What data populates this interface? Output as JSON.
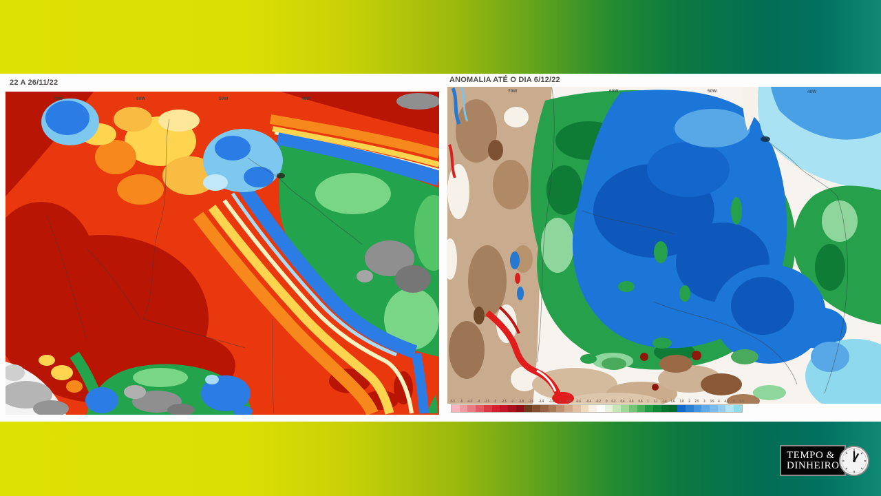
{
  "background": {
    "gradient_colors": [
      "#dee104",
      "#9ab80d",
      "#218a32",
      "#046e52",
      "#0f8a74"
    ],
    "panel_color": "#fdfdfd"
  },
  "left_map": {
    "title": "22 A 26/11/22",
    "lon_labels": [
      "70W",
      "60W",
      "50W",
      "40W"
    ],
    "palette": {
      "dark_red": "#b81505",
      "red": "#e9380e",
      "orange": "#f6881c",
      "yellow": "#ffd44e",
      "blue": "#2b7ce4",
      "cyan": "#a8dcf4",
      "green": "#22a34c",
      "light_green": "#79d687",
      "gray": "#8f8f8f",
      "white": "#f3f3f3"
    }
  },
  "right_map": {
    "title": "ANOMALIA ATÉ O DIA 6/12/22",
    "lon_labels": [
      "70W",
      "60W",
      "50W",
      "40W"
    ],
    "palette": {
      "tan": "#c9ab8e",
      "brown": "#8a5a38",
      "white": "#f7f4ef",
      "green": "#27a04c",
      "dark_green": "#0e7c34",
      "light_green": "#8fd69c",
      "blue": "#1b76d8",
      "dark_blue": "#0e58bc",
      "ocean_cyan": "#a9e2f2",
      "red": "#e01c1c",
      "dark_red": "#8e180e"
    },
    "colorbar": {
      "labels": [
        "-5.5",
        "-5",
        "-4.5",
        "-4",
        "-3.5",
        "-3",
        "-2.5",
        "-2",
        "-1.8",
        "-1.6",
        "-1.4",
        "-1.2",
        "-1",
        "-0.8",
        "-0.6",
        "-0.4",
        "-0.2",
        "0",
        "0.2",
        "0.4",
        "0.6",
        "0.8",
        "1",
        "1.2",
        "1.4",
        "1.6",
        "1.8",
        "2",
        "2.5",
        "3",
        "3.5",
        "4",
        "4.5",
        "5",
        "5.5"
      ],
      "colors": [
        "#f6b6bd",
        "#f09aa2",
        "#ea7a83",
        "#e45a64",
        "#de3a46",
        "#d62030",
        "#c41526",
        "#ac101c",
        "#920c14",
        "#6e3b1e",
        "#82502e",
        "#966442",
        "#aa7a56",
        "#be926e",
        "#d0aa88",
        "#e0c2a2",
        "#eedabc",
        "#f8f0e4",
        "#ffffff",
        "#e6f4de",
        "#c6e6b8",
        "#a0d696",
        "#74c476",
        "#48b058",
        "#249c44",
        "#108838",
        "#087430",
        "#066c2c",
        "#1468c8",
        "#2a80d4",
        "#4496de",
        "#60aae6",
        "#7cbcec",
        "#96ccf2",
        "#b4e4f4",
        "#8edce8"
      ]
    }
  },
  "logo": {
    "line1": "TEMPO &",
    "line2": "DINHEIRO",
    "icon": "clock-icon",
    "bg_color": "#050505",
    "text_color": "#ffffff",
    "border_color": "#8d8d8d"
  }
}
